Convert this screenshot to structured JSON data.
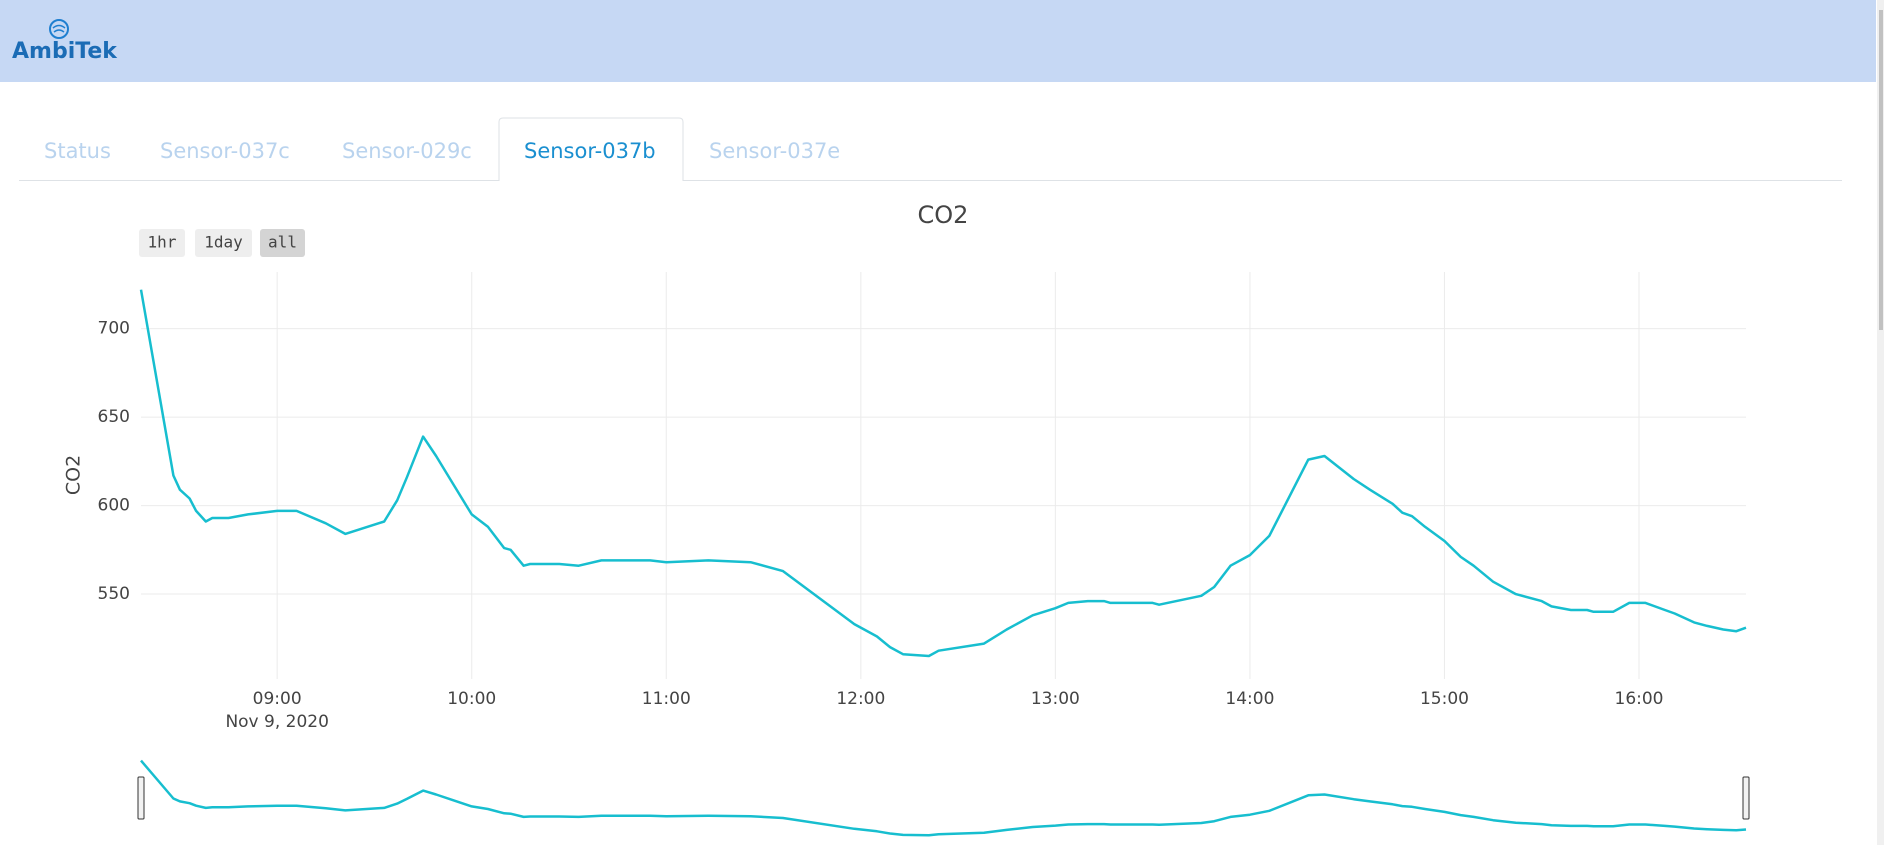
{
  "header": {
    "logo": "AmbiTek"
  },
  "tabs": {
    "items": [
      "Status",
      "Sensor-037c",
      "Sensor-029c",
      "Sensor-037b",
      "Sensor-037e"
    ],
    "active": 3
  },
  "range_buttons": {
    "items": [
      "1hr",
      "1day",
      "all"
    ],
    "active": 2
  },
  "chart_data": {
    "type": "line",
    "title": "CO2",
    "y_label": "CO2",
    "color": "#17becf",
    "grid": true,
    "x": [
      "08:18",
      "08:28",
      "08:30",
      "08:33",
      "08:35",
      "08:38",
      "08:40",
      "08:45",
      "08:51",
      "09:00",
      "09:06",
      "09:15",
      "09:21",
      "09:33",
      "09:37",
      "09:40",
      "09:45",
      "09:49",
      "09:54",
      "10:00",
      "10:05",
      "10:10",
      "10:12",
      "10:16",
      "10:18",
      "10:27",
      "10:33",
      "10:40",
      "10:55",
      "11:00",
      "11:13",
      "11:26",
      "11:36",
      "11:58",
      "12:05",
      "12:09",
      "12:13",
      "12:21",
      "12:24",
      "12:38",
      "12:45",
      "12:53",
      "13:00",
      "13:04",
      "13:10",
      "13:15",
      "13:17",
      "13:30",
      "13:32",
      "13:45",
      "13:49",
      "13:54",
      "14:00",
      "14:06",
      "14:18",
      "14:23",
      "14:32",
      "14:37",
      "14:44",
      "14:47",
      "14:50",
      "14:54",
      "15:00",
      "15:05",
      "15:09",
      "15:15",
      "15:22",
      "15:30",
      "15:33",
      "15:39",
      "15:44",
      "15:46",
      "15:52",
      "15:57",
      "16:02",
      "16:08",
      "16:11",
      "16:17",
      "16:21",
      "16:26",
      "16:30",
      "16:33"
    ],
    "values": [
      722,
      617,
      609,
      604,
      597,
      591,
      593,
      593,
      595,
      597,
      597,
      590,
      584,
      591,
      603,
      616,
      639,
      628,
      613,
      595,
      588,
      576,
      575,
      566,
      567,
      567,
      566,
      569,
      569,
      568,
      569,
      568,
      563,
      533,
      526,
      520,
      516,
      515,
      518,
      522,
      530,
      538,
      542,
      545,
      546,
      546,
      545,
      545,
      544,
      549,
      554,
      566,
      572,
      583,
      626,
      628,
      615,
      609,
      601,
      596,
      594,
      588,
      580,
      571,
      566,
      557,
      550,
      546,
      543,
      541,
      541,
      540,
      540,
      545,
      545,
      541,
      539,
      534,
      532,
      530,
      529,
      531
    ],
    "xlim": [
      "08:18",
      "16:33"
    ],
    "xticks": [
      "09:00",
      "10:00",
      "11:00",
      "12:00",
      "13:00",
      "14:00",
      "15:00",
      "16:00"
    ],
    "x_date_label": "Nov 9, 2020",
    "ylim": [
      502,
      732
    ],
    "yticks": [
      550,
      600,
      650,
      700
    ]
  }
}
